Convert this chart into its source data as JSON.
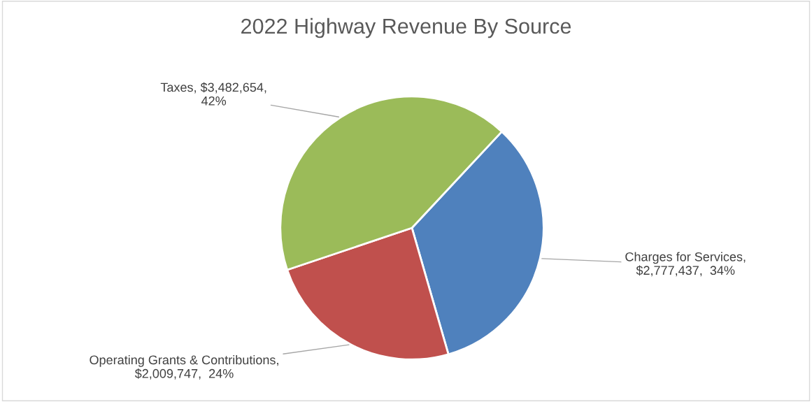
{
  "chart_data": {
    "type": "pie",
    "title": "2022 Highway Revenue By Source",
    "categories": [
      "Charges for Services",
      "Operating Grants & Contributions",
      "Taxes"
    ],
    "values": [
      2777437,
      2009747,
      3482654
    ],
    "colors": [
      "#4f81bd",
      "#c0504d",
      "#9bbb59"
    ],
    "value_labels": [
      ",\n$2,777,437,  34%",
      ",\n$2,009,747,  24%",
      ", $3,482,654,\n42%"
    ]
  }
}
